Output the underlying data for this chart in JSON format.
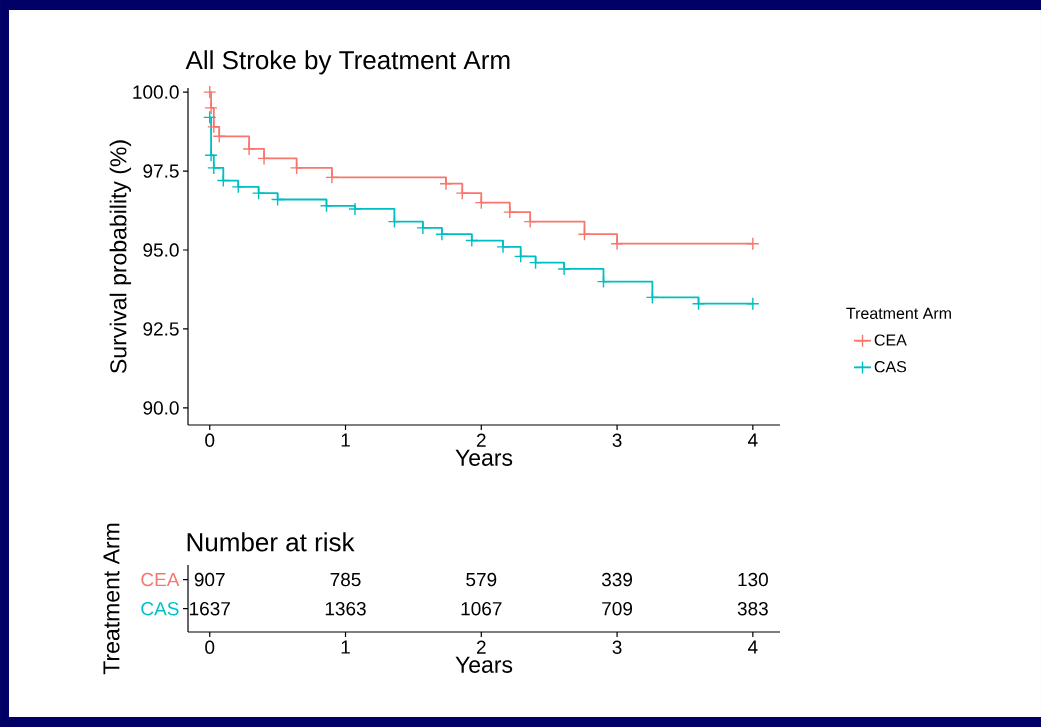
{
  "chart_data": [
    {
      "type": "step",
      "title": "All Stroke by Treatment Arm",
      "xlabel": "Years",
      "ylabel": "Survival probability (%)",
      "legend_title": "Treatment Arm",
      "legend": "right",
      "marker": "cross",
      "line_style": "solid",
      "xlim": [
        -0.16,
        4.2
      ],
      "xticks": [
        0,
        1,
        2,
        3,
        4
      ],
      "ylim": [
        89.46,
        100.13
      ],
      "yticks": [
        {
          "value": 90,
          "label": "90.0"
        },
        {
          "value": 92.5,
          "label": "92.5"
        },
        {
          "value": 95,
          "label": "95.0"
        },
        {
          "value": 97.5,
          "label": "97.5"
        },
        {
          "value": 100,
          "label": "100.0"
        }
      ],
      "series": [
        {
          "name": "CEA",
          "color": "#f8766d",
          "x": [
            0,
            0.01,
            0.03,
            0.07,
            0.29,
            0.4,
            0.64,
            0.9,
            1.74,
            1.86,
            2.0,
            2.21,
            2.36,
            2.76,
            3.0,
            4.0
          ],
          "values": [
            100.0,
            99.5,
            98.9,
            98.6,
            98.2,
            97.9,
            97.6,
            97.3,
            97.1,
            96.8,
            96.5,
            96.2,
            95.9,
            95.5,
            95.2,
            95.2
          ]
        },
        {
          "name": "CAS",
          "color": "#00bfc4",
          "x": [
            0,
            0.01,
            0.03,
            0.1,
            0.21,
            0.36,
            0.5,
            0.86,
            1.07,
            1.36,
            1.57,
            1.71,
            1.93,
            2.16,
            2.29,
            2.4,
            2.61,
            2.9,
            3.26,
            3.6,
            4.0
          ],
          "values": [
            99.2,
            98.0,
            97.6,
            97.2,
            97.0,
            96.8,
            96.6,
            96.4,
            96.3,
            95.9,
            95.7,
            95.5,
            95.3,
            95.1,
            94.8,
            94.6,
            94.4,
            94.0,
            93.5,
            93.3,
            93.3
          ]
        }
      ]
    },
    {
      "type": "heatmap",
      "title": "Number at risk",
      "xlabel": "Years",
      "ylabel": "Treatment Arm",
      "data_labels": true,
      "x": [
        0,
        1,
        2,
        3,
        4
      ],
      "xlim": [
        -0.16,
        4.2
      ],
      "xticks": [
        0,
        1,
        2,
        3,
        4
      ],
      "y_categories": [
        "CEA",
        "CAS"
      ],
      "colors": [
        "#f8766d",
        "#00bfc4"
      ],
      "cells": [
        [
          907,
          785,
          579,
          339,
          130
        ],
        [
          1637,
          1363,
          1067,
          709,
          383
        ]
      ]
    }
  ]
}
